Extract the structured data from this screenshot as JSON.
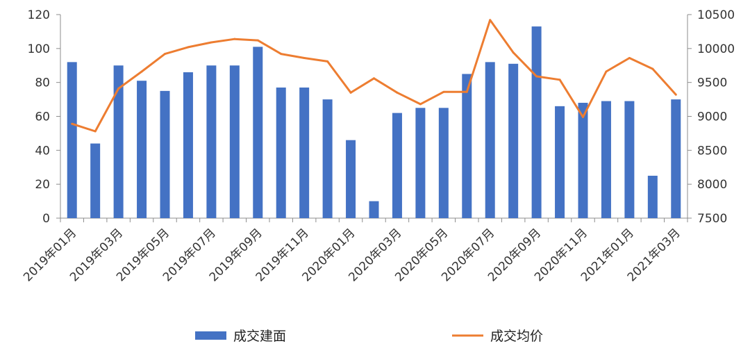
{
  "chart_data": {
    "type": "bar",
    "categories": [
      "2019年01月",
      "2019年02月",
      "2019年03月",
      "2019年04月",
      "2019年05月",
      "2019年06月",
      "2019年07月",
      "2019年08月",
      "2019年09月",
      "2019年10月",
      "2019年11月",
      "2019年12月",
      "2020年01月",
      "2020年02月",
      "2020年03月",
      "2020年04月",
      "2020年05月",
      "2020年06月",
      "2020年07月",
      "2020年08月",
      "2020年09月",
      "2020年10月",
      "2020年11月",
      "2020年12月",
      "2021年01月",
      "2021年02月",
      "2021年03月"
    ],
    "series": [
      {
        "name": "成交建面",
        "type": "bar",
        "axis": "left",
        "color": "#4472C4",
        "values": [
          92,
          44,
          90,
          81,
          75,
          86,
          90,
          90,
          101,
          77,
          77,
          70,
          46,
          10,
          62,
          65,
          65,
          85,
          92,
          91,
          113,
          66,
          68,
          69,
          69,
          25,
          70
        ]
      },
      {
        "name": "成交均价",
        "type": "line",
        "axis": "right",
        "color": "#ED7D31",
        "values": [
          8890,
          8780,
          9410,
          9660,
          9920,
          10020,
          10090,
          10140,
          10120,
          9920,
          9860,
          9810,
          9350,
          9560,
          9350,
          9180,
          9360,
          9360,
          10420,
          9940,
          9590,
          9540,
          8990,
          9660,
          9860,
          9700,
          9320
        ]
      }
    ],
    "xtick_labels": [
      "2019年01月",
      "2019年03月",
      "2019年05月",
      "2019年07月",
      "2019年09月",
      "2019年11月",
      "2020年01月",
      "2020年03月",
      "2020年05月",
      "2020年07月",
      "2020年09月",
      "2020年11月",
      "2021年01月",
      "2021年03月"
    ],
    "y_left": {
      "min": 0,
      "max": 120,
      "ticks": [
        0,
        20,
        40,
        60,
        80,
        100,
        120
      ]
    },
    "y_right": {
      "min": 7500,
      "max": 10500,
      "ticks": [
        7500,
        8000,
        8500,
        9000,
        9500,
        10000,
        10500
      ]
    },
    "title": "",
    "xlabel": "",
    "ylabel": "",
    "grid": false,
    "legend": {
      "position": "bottom",
      "items": [
        {
          "label": "成交建面",
          "kind": "bar",
          "color": "#4472C4"
        },
        {
          "label": "成交均价",
          "kind": "line",
          "color": "#ED7D31"
        }
      ]
    }
  }
}
